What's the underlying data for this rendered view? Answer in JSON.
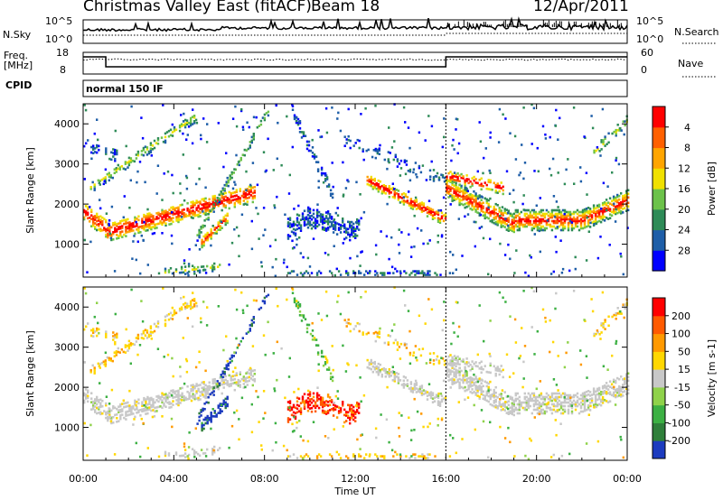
{
  "header": {
    "title": "Christmas Valley East (fitACF)",
    "beam": "Beam 18",
    "date": "12/Apr/2011"
  },
  "info_panels": {
    "nsky_label": "N.Sky",
    "nsky_ticks": [
      "10^5",
      "10^0"
    ],
    "nsearch_label": "N.Search",
    "nsearch_ticks": [
      "10^5",
      "10^0"
    ],
    "freq_label_1": "Freq.",
    "freq_label_2": "[MHz]",
    "freq_ticks": [
      "18",
      "8"
    ],
    "nave_label": "Nave",
    "nave_ticks": [
      "60",
      "0"
    ],
    "cpid_label": "CPID",
    "cpid_value": "normal 150 IF"
  },
  "chart_data": [
    {
      "type": "heatmap",
      "panel": "power",
      "ylabel": "Slant Range [km]",
      "xlabel": "",
      "x_tick_labels": [
        "00:00",
        "04:00",
        "08:00",
        "12:00",
        "16:00",
        "20:00",
        "00:00"
      ],
      "y_ticks": [
        1000,
        2000,
        3000,
        4000
      ],
      "ylim": [
        180,
        4500
      ],
      "xlim_hours": [
        0,
        24
      ],
      "colorbar_label": "Power [dB]",
      "colorbar_ticks": [
        "4",
        "8",
        "12",
        "16",
        "20",
        "24",
        "28"
      ],
      "colorbar_colors": [
        "#0000ff",
        "#1e5ea8",
        "#2e8b57",
        "#6cc24a",
        "#f0e000",
        "#ffa500",
        "#ff6000",
        "#ff0000"
      ]
    },
    {
      "type": "heatmap",
      "panel": "velocity",
      "ylabel": "Slant Range [km]",
      "xlabel": "Time UT",
      "x_tick_labels": [
        "00:00",
        "04:00",
        "08:00",
        "12:00",
        "16:00",
        "20:00",
        "00:00"
      ],
      "y_ticks": [
        1000,
        2000,
        3000,
        4000
      ],
      "ylim": [
        180,
        4500
      ],
      "xlim_hours": [
        0,
        24
      ],
      "colorbar_label": "Velocity [m s-1]",
      "colorbar_ticks": [
        "200",
        "100",
        "50",
        "15",
        "-15",
        "-50",
        "-100",
        "-200"
      ],
      "colorbar_colors": [
        "#1c3bbf",
        "#2f7f3a",
        "#3cb043",
        "#8fd24a",
        "#c8c8c8",
        "#ffd700",
        "#ff9900",
        "#ff5a00",
        "#ff0000"
      ]
    }
  ]
}
